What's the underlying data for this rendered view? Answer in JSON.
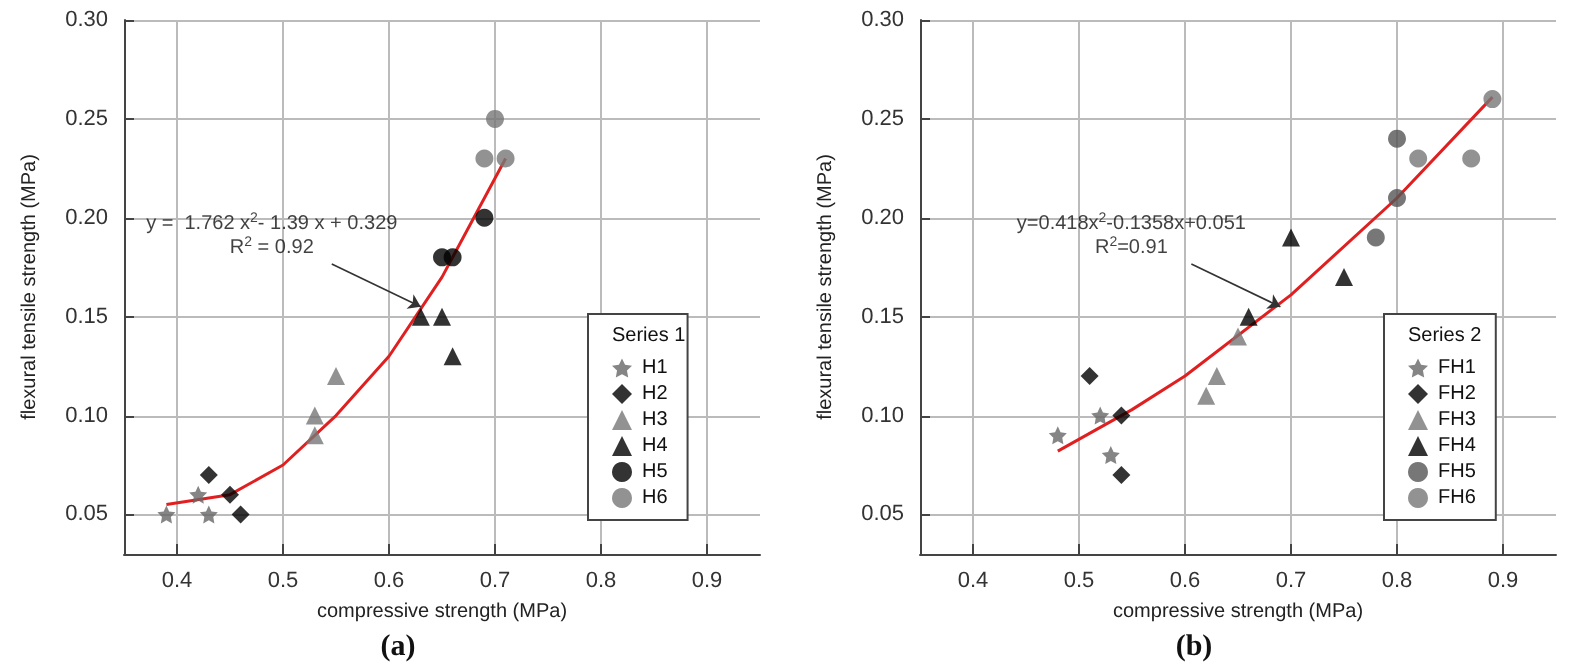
{
  "chart_data": [
    {
      "type": "scatter",
      "xlabel": "compressive strength (MPa)",
      "ylabel": "flexural tensile strength (MPa)",
      "legend_title": "Series 1",
      "xlim": [
        0.35,
        0.95
      ],
      "xticks": [
        0.4,
        0.5,
        0.6,
        0.7,
        0.8,
        0.9
      ],
      "ylim": [
        0.03,
        0.3
      ],
      "yticks": [
        {
          "value": 0.05,
          "label": "0.05"
        },
        {
          "value": 0.1,
          "label": "0.10"
        },
        {
          "value": 0.15,
          "label": "0.15"
        },
        {
          "value": 0.2,
          "label": "0.20"
        },
        {
          "value": 0.25,
          "label": "0.25"
        },
        {
          "value": 0.3,
          "label": "0.30"
        }
      ],
      "grid": true,
      "legend": "bottom right",
      "series": [
        {
          "name": "H1",
          "color": "#666666",
          "marker": "star",
          "x": [
            0.39,
            0.42,
            0.43
          ],
          "values": [
            0.05,
            0.06,
            0.05
          ]
        },
        {
          "name": "H2",
          "color": "#000000",
          "marker": "diamond",
          "x": [
            0.43,
            0.45,
            0.46
          ],
          "values": [
            0.07,
            0.06,
            0.05
          ]
        },
        {
          "name": "H3",
          "color": "#777777",
          "marker": "triangle",
          "x": [
            0.53,
            0.53,
            0.55
          ],
          "values": [
            0.09,
            0.1,
            0.12
          ]
        },
        {
          "name": "H4",
          "color": "#000000",
          "marker": "triangle",
          "x": [
            0.63,
            0.65,
            0.66
          ],
          "values": [
            0.15,
            0.15,
            0.13
          ]
        },
        {
          "name": "H5",
          "color": "#000000",
          "marker": "circle",
          "x": [
            0.65,
            0.66,
            0.69
          ],
          "values": [
            0.18,
            0.18,
            0.2
          ]
        },
        {
          "name": "H6",
          "color": "#777777",
          "marker": "circle",
          "x": [
            0.69,
            0.7,
            0.71
          ],
          "values": [
            0.23,
            0.25,
            0.23
          ]
        },
        {
          "type": "line",
          "color": "#e02020",
          "marker": "none",
          "x": [
            0.39,
            0.45,
            0.5,
            0.55,
            0.6,
            0.65,
            0.71
          ],
          "values": [
            0.055,
            0.06,
            0.075,
            0.1,
            0.13,
            0.17,
            0.23
          ]
        }
      ],
      "annotations": [
        {
          "text": "y =  1.762 x$^{2}$- 1.39 x + 0.329\nR$^{2}$ = 0.92",
          "x": 0.63,
          "y": 0.155
        },
        "(a)"
      ]
    },
    {
      "type": "scatter",
      "xlabel": "compressive strength (MPa)",
      "ylabel": "flexural tensile strength (MPa)",
      "legend_title": "Series 2",
      "xlim": [
        0.35,
        0.95
      ],
      "xticks": [
        0.4,
        0.5,
        0.6,
        0.7,
        0.8,
        0.9
      ],
      "ylim": [
        0.03,
        0.3
      ],
      "yticks": [
        {
          "value": 0.05,
          "label": "0.05"
        },
        {
          "value": 0.1,
          "label": "0.10"
        },
        {
          "value": 0.15,
          "label": "0.15"
        },
        {
          "value": 0.2,
          "label": "0.20"
        },
        {
          "value": 0.25,
          "label": "0.25"
        },
        {
          "value": 0.3,
          "label": "0.30"
        }
      ],
      "grid": true,
      "legend": "bottom right",
      "series": [
        {
          "name": "FH1",
          "color": "#666666",
          "marker": "star",
          "x": [
            0.48,
            0.52,
            0.53
          ],
          "values": [
            0.09,
            0.1,
            0.08
          ]
        },
        {
          "name": "FH2",
          "color": "#000000",
          "marker": "diamond",
          "x": [
            0.51,
            0.54,
            0.54
          ],
          "values": [
            0.12,
            0.1,
            0.07
          ]
        },
        {
          "name": "FH3",
          "color": "#777777",
          "marker": "triangle",
          "x": [
            0.62,
            0.63,
            0.65
          ],
          "values": [
            0.11,
            0.12,
            0.14
          ]
        },
        {
          "name": "FH4",
          "color": "#000000",
          "marker": "triangle",
          "x": [
            0.66,
            0.7,
            0.75
          ],
          "values": [
            0.15,
            0.19,
            0.17
          ]
        },
        {
          "name": "FH5",
          "color": "#555555",
          "marker": "circle",
          "x": [
            0.78,
            0.8,
            0.8
          ],
          "values": [
            0.19,
            0.24,
            0.21
          ]
        },
        {
          "name": "FH6",
          "color": "#777777",
          "marker": "circle",
          "x": [
            0.82,
            0.87,
            0.89
          ],
          "values": [
            0.23,
            0.23,
            0.26
          ]
        },
        {
          "type": "line",
          "color": "#e02020",
          "marker": "none",
          "x": [
            0.48,
            0.55,
            0.6,
            0.7,
            0.8,
            0.89
          ],
          "values": [
            0.082,
            0.103,
            0.12,
            0.161,
            0.21,
            0.261
          ]
        }
      ],
      "annotations": [
        {
          "text": "y=0.418x$^{2}$-0.1358x+0.051\nR$^{2}$=0.91",
          "x": 0.69,
          "y": 0.155
        },
        "(b)"
      ]
    }
  ]
}
